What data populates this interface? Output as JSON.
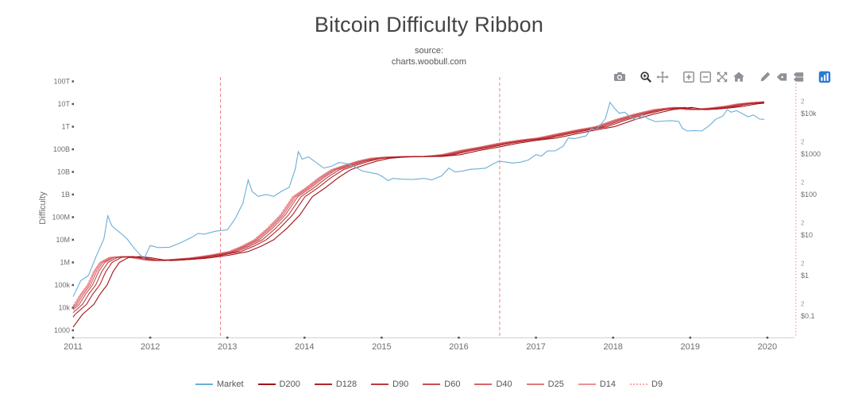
{
  "title": "Bitcoin Difficulty Ribbon",
  "subtitle": {
    "line1": "source:",
    "line2": "charts.woobull.com"
  },
  "modebar": {
    "icon_color": "#8e9196",
    "active_icon_color": "#333333",
    "logo_color": "#2b7bd1",
    "active": "zoom",
    "groups": [
      [
        "camera"
      ],
      [
        "zoom",
        "pan"
      ],
      [
        "zoom-in",
        "zoom-out",
        "autoscale",
        "reset-axes"
      ],
      [
        "toggle-spikelines",
        "hover-closest",
        "hover-compare"
      ],
      [
        "plotly-logo"
      ]
    ]
  },
  "chart_data": {
    "type": "line",
    "title": "Bitcoin Difficulty Ribbon",
    "grid": false,
    "legend_position": "bottom-center",
    "x_range": [
      2011,
      2020.35
    ],
    "x_ticks": [
      2011,
      2012,
      2013,
      2014,
      2015,
      2016,
      2017,
      2018,
      2019,
      2020
    ],
    "y_left": {
      "title": "Difficulty",
      "scale": "log",
      "ticks": [
        {
          "label": "100T",
          "value": 100000000000000.0
        },
        {
          "label": "10T",
          "value": 10000000000000.0
        },
        {
          "label": "1T",
          "value": 1000000000000.0
        },
        {
          "label": "100B",
          "value": 100000000000.0
        },
        {
          "label": "10B",
          "value": 10000000000.0
        },
        {
          "label": "1B",
          "value": 1000000000.0
        },
        {
          "label": "100M",
          "value": 100000000.0
        },
        {
          "label": "10M",
          "value": 10000000.0
        },
        {
          "label": "1M",
          "value": 1000000.0
        },
        {
          "label": "100k",
          "value": 100000.0
        },
        {
          "label": "10k",
          "value": 10000.0
        },
        {
          "label": "1000",
          "value": 1000.0
        }
      ]
    },
    "y_right": {
      "scale": "log",
      "minor_tick_label": "2",
      "ticks": [
        {
          "label": "$10k",
          "value": 10000
        },
        {
          "label": "$1000",
          "value": 1000
        },
        {
          "label": "$100",
          "value": 100
        },
        {
          "label": "$10",
          "value": 10
        },
        {
          "label": "$1",
          "value": 1
        },
        {
          "label": "$0.1",
          "value": 0.1
        }
      ]
    },
    "series_market": {
      "name": "Market",
      "axis": "right",
      "color": "#6baed6",
      "x": [
        2011.0,
        2011.1,
        2011.2,
        2011.3,
        2011.4,
        2011.45,
        2011.5,
        2011.55,
        2011.62,
        2011.7,
        2011.8,
        2011.92,
        2012.0,
        2012.1,
        2012.25,
        2012.4,
        2012.55,
        2012.62,
        2012.7,
        2012.85,
        2013.0,
        2013.1,
        2013.2,
        2013.27,
        2013.32,
        2013.4,
        2013.5,
        2013.6,
        2013.7,
        2013.8,
        2013.88,
        2013.92,
        2013.97,
        2014.05,
        2014.15,
        2014.25,
        2014.35,
        2014.45,
        2014.55,
        2014.65,
        2014.75,
        2014.85,
        2014.95,
        2015.02,
        2015.08,
        2015.15,
        2015.25,
        2015.4,
        2015.55,
        2015.65,
        2015.78,
        2015.87,
        2015.95,
        2016.05,
        2016.15,
        2016.25,
        2016.35,
        2016.45,
        2016.52,
        2016.6,
        2016.7,
        2016.8,
        2016.9,
        2017.0,
        2017.07,
        2017.15,
        2017.25,
        2017.35,
        2017.42,
        2017.5,
        2017.58,
        2017.65,
        2017.72,
        2017.78,
        2017.85,
        2017.9,
        2017.96,
        2018.02,
        2018.08,
        2018.15,
        2018.22,
        2018.3,
        2018.38,
        2018.45,
        2018.55,
        2018.65,
        2018.75,
        2018.85,
        2018.9,
        2018.96,
        2019.05,
        2019.15,
        2019.25,
        2019.33,
        2019.42,
        2019.48,
        2019.53,
        2019.6,
        2019.68,
        2019.75,
        2019.82,
        2019.9,
        2019.96
      ],
      "price_usd": [
        0.3,
        0.75,
        1.0,
        3.0,
        8.0,
        30,
        17,
        14,
        11,
        8.0,
        4.5,
        2.6,
        5.5,
        4.9,
        5.0,
        6.5,
        9.0,
        11,
        10.5,
        12.5,
        13.5,
        25,
        60,
        230,
        120,
        90,
        100,
        90,
        120,
        150,
        420,
        1150,
        750,
        850,
        620,
        450,
        500,
        620,
        580,
        480,
        380,
        350,
        320,
        270,
        220,
        250,
        240,
        235,
        250,
        230,
        290,
        450,
        360,
        380,
        420,
        430,
        450,
        580,
        670,
        640,
        600,
        630,
        710,
        970,
        890,
        1190,
        1200,
        1550,
        2500,
        2400,
        2600,
        2800,
        4300,
        4000,
        5600,
        7500,
        19000,
        13500,
        10200,
        10800,
        8300,
        7000,
        9200,
        7500,
        6300,
        6500,
        6700,
        6400,
        4300,
        3700,
        3800,
        3700,
        5100,
        7200,
        8600,
        12500,
        10800,
        11800,
        9800,
        8300,
        9200,
        7300,
        7200
      ]
    },
    "difficulty_raw": {
      "axis": "left",
      "x": [
        2010.7,
        2010.85,
        2011.0,
        2011.08,
        2011.17,
        2011.25,
        2011.33,
        2011.45,
        2011.6,
        2011.75,
        2011.92,
        2012.0,
        2012.25,
        2012.5,
        2012.75,
        2013.0,
        2013.17,
        2013.33,
        2013.5,
        2013.67,
        2013.83,
        2014.0,
        2014.17,
        2014.33,
        2014.5,
        2014.67,
        2014.83,
        2015.0,
        2015.25,
        2015.5,
        2015.75,
        2016.0,
        2016.25,
        2016.5,
        2016.75,
        2017.0,
        2017.25,
        2017.5,
        2017.75,
        2018.0,
        2018.25,
        2018.5,
        2018.75,
        2018.92,
        2019.08,
        2019.25,
        2019.42,
        2019.58,
        2019.75,
        2019.92,
        2020.0
      ],
      "log10_values": [
        3.0,
        3.7,
        4.15,
        4.6,
        5.0,
        5.6,
        6.0,
        6.22,
        6.26,
        6.2,
        6.1,
        6.08,
        6.13,
        6.2,
        6.32,
        6.48,
        6.72,
        7.0,
        7.5,
        8.1,
        8.9,
        9.3,
        9.75,
        10.1,
        10.3,
        10.48,
        10.6,
        10.65,
        10.68,
        10.68,
        10.76,
        10.95,
        11.1,
        11.27,
        11.4,
        11.5,
        11.68,
        11.85,
        12.0,
        12.3,
        12.55,
        12.75,
        12.85,
        12.75,
        12.78,
        12.83,
        12.9,
        13.0,
        13.06,
        13.1,
        13.11
      ]
    },
    "ribbon_series": [
      {
        "name": "D200",
        "window_days": 200,
        "lag_years": 0.27,
        "color": "#a50f15",
        "dash": "solid"
      },
      {
        "name": "D128",
        "window_days": 128,
        "lag_years": 0.175,
        "color": "#b1252a",
        "dash": "solid"
      },
      {
        "name": "D90",
        "window_days": 90,
        "lag_years": 0.123,
        "color": "#bd3a3f",
        "dash": "solid"
      },
      {
        "name": "D60",
        "window_days": 60,
        "lag_years": 0.082,
        "color": "#c95054",
        "dash": "solid"
      },
      {
        "name": "D40",
        "window_days": 40,
        "lag_years": 0.055,
        "color": "#d56569",
        "dash": "solid"
      },
      {
        "name": "D25",
        "window_days": 25,
        "lag_years": 0.034,
        "color": "#e17b7e",
        "dash": "solid"
      },
      {
        "name": "D14",
        "window_days": 14,
        "lag_years": 0.019,
        "color": "#ed9093",
        "dash": "solid"
      },
      {
        "name": "D9",
        "window_days": 9,
        "lag_years": 0.012,
        "color": "#f9a6a8",
        "dash": "dotted"
      }
    ],
    "halvings": [
      {
        "x": 2012.91,
        "style": "dashed"
      },
      {
        "x": 2016.53,
        "style": "dashed"
      },
      {
        "x": 2020.37,
        "style": "dotted"
      }
    ],
    "halving_color": "#f08080"
  }
}
